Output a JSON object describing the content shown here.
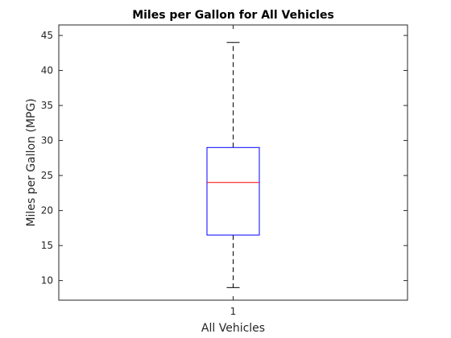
{
  "chart_data": {
    "type": "box",
    "title": "Miles per Gallon for All Vehicles",
    "xlabel": "All Vehicles",
    "ylabel": "Miles per Gallon (MPG)",
    "categories": [
      "1"
    ],
    "ylim": [
      7.2,
      46.5
    ],
    "yticks": [
      10,
      15,
      20,
      25,
      30,
      35,
      40,
      45
    ],
    "boxes": [
      {
        "category": "1",
        "whisker_low": 9,
        "q1": 16.5,
        "median": 24,
        "q3": 29,
        "whisker_high": 44
      }
    ],
    "grid": false,
    "box": true,
    "colors": {
      "box": "#0000ff",
      "median": "#ff0000",
      "whisker": "#000000",
      "axes": "#262626"
    }
  }
}
